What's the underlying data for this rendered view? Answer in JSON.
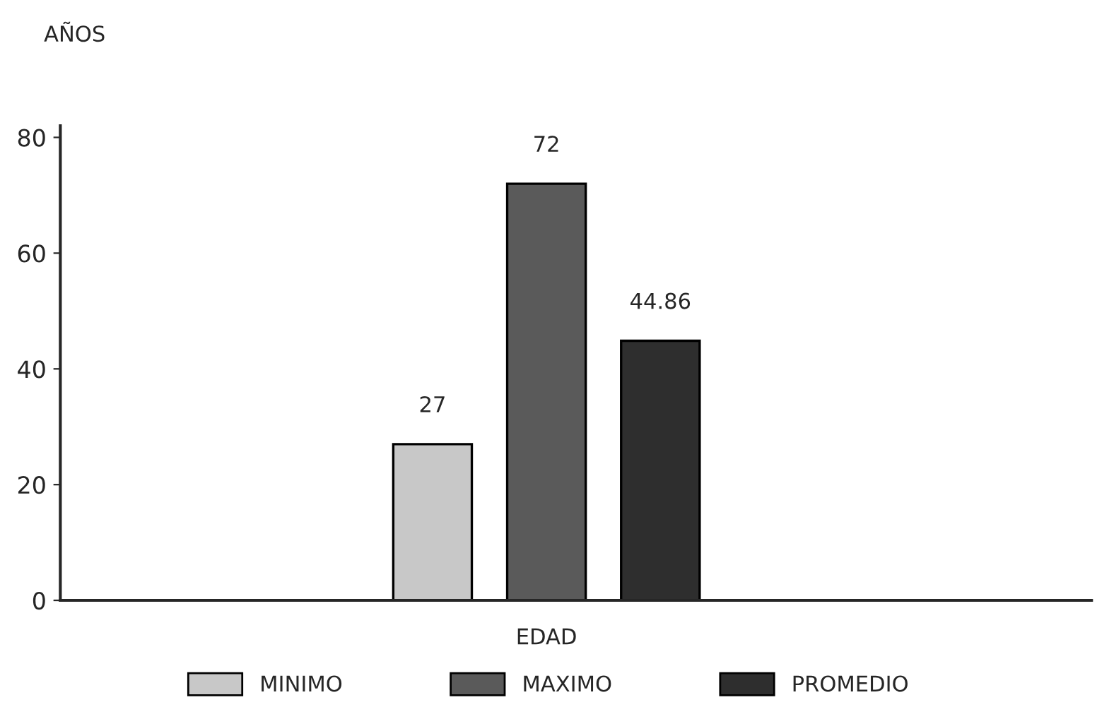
{
  "chart_data": {
    "type": "bar",
    "ylabel": "AÑOS",
    "categories": [
      "EDAD"
    ],
    "series": [
      {
        "name": "MINIMO",
        "color": "#c8c8c8",
        "values": [
          27
        ]
      },
      {
        "name": "MAXIMO",
        "color": "#5a5a5a",
        "values": [
          72
        ]
      },
      {
        "name": "PROMEDIO",
        "color": "#2e2e2e",
        "values": [
          44.86
        ]
      }
    ],
    "value_labels": [
      [
        "27"
      ],
      [
        "72"
      ],
      [
        "44.86"
      ]
    ],
    "ylim": [
      0,
      82
    ],
    "yticks": [
      0,
      20,
      40,
      60,
      80
    ],
    "grid": false,
    "legend": "bottom"
  }
}
